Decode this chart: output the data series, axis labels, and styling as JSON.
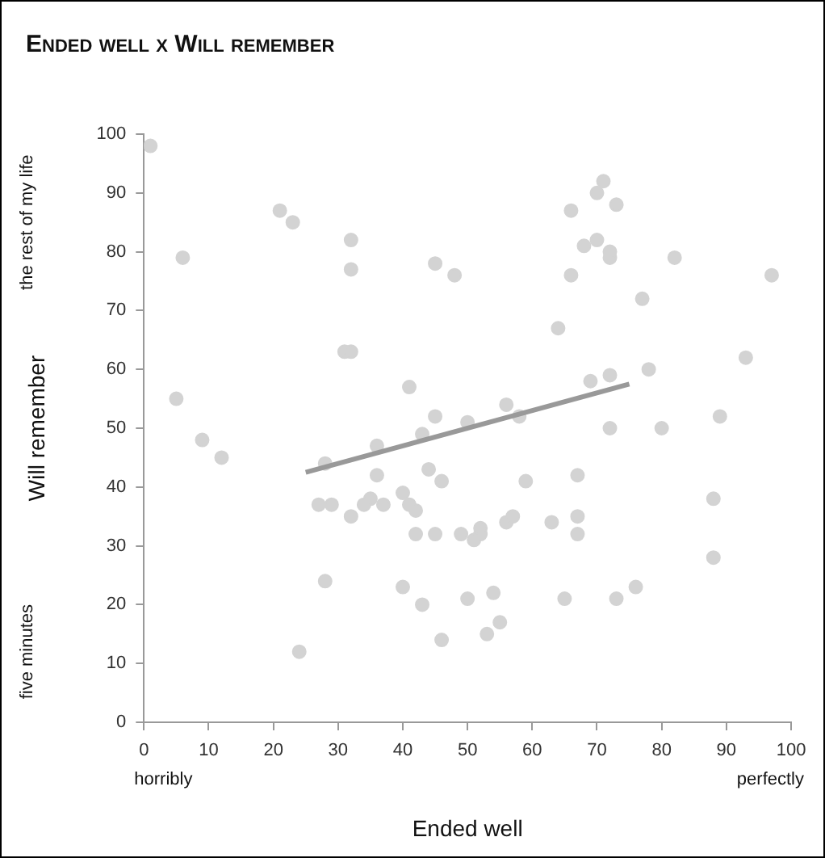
{
  "chart_data": {
    "type": "scatter",
    "title": "Ended well x Will remember",
    "xlabel": "Ended well",
    "ylabel": "Will remember",
    "xlim": [
      0,
      100
    ],
    "xticks": [
      0,
      10,
      20,
      30,
      40,
      50,
      60,
      70,
      80,
      90,
      100
    ],
    "ylim": [
      0,
      100
    ],
    "yticks": [
      0,
      10,
      20,
      30,
      40,
      50,
      60,
      70,
      80,
      90,
      100
    ],
    "grid": false,
    "legend": false,
    "marker": "circle",
    "annotations": [
      "horribly",
      "perfectly",
      "five minutes",
      "the rest of my life"
    ],
    "series": [
      {
        "color": "#d3d3d3",
        "x": [
          1,
          6,
          5,
          9,
          12,
          21,
          23,
          32,
          32,
          31,
          32,
          24,
          27,
          28,
          28,
          29,
          32,
          34,
          35,
          36,
          36,
          37,
          40,
          40,
          41,
          41,
          42,
          42,
          43,
          43,
          44,
          45,
          45,
          45,
          46,
          46,
          48,
          49,
          50,
          50,
          51,
          52,
          52,
          53,
          54,
          55,
          56,
          56,
          57,
          58,
          59,
          63,
          64,
          65,
          66,
          66,
          67,
          67,
          67,
          68,
          69,
          70,
          70,
          71,
          72,
          72,
          72,
          72,
          73,
          73,
          76,
          77,
          78,
          80,
          82,
          88,
          88,
          89,
          93,
          97
        ],
        "values": [
          98,
          79,
          55,
          48,
          45,
          87,
          85,
          82,
          77,
          63,
          63,
          12,
          37,
          44,
          24,
          37,
          35,
          37,
          38,
          42,
          47,
          37,
          39,
          23,
          37,
          57,
          36,
          32,
          20,
          49,
          43,
          52,
          32,
          78,
          41,
          14,
          76,
          32,
          21,
          51,
          31,
          32,
          33,
          15,
          22,
          17,
          54,
          34,
          35,
          52,
          41,
          34,
          67,
          21,
          87,
          76,
          42,
          35,
          32,
          81,
          58,
          82,
          90,
          92,
          79,
          80,
          59,
          50,
          88,
          21,
          23,
          72,
          60,
          50,
          79,
          38,
          28,
          52,
          62,
          76
        ]
      },
      {
        "type": "line",
        "color": "#999999",
        "x": [
          25,
          75
        ],
        "values": [
          42.5,
          57.5
        ],
        "marker": "none"
      }
    ]
  }
}
